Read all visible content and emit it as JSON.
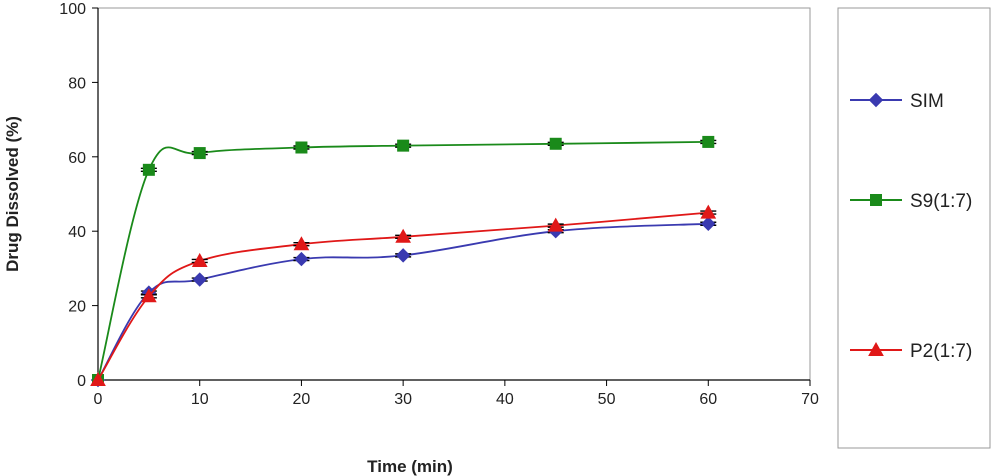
{
  "chart_data": {
    "type": "line",
    "xlabel": "Time (min)",
    "ylabel": "Drug Dissolved (%)",
    "xlim": [
      0,
      70
    ],
    "ylim": [
      0,
      100
    ],
    "xticks": [
      0,
      10,
      20,
      30,
      40,
      50,
      60,
      70
    ],
    "yticks": [
      0,
      20,
      40,
      60,
      80,
      100
    ],
    "grid": false,
    "legend_position": "right",
    "x": [
      0,
      5,
      10,
      20,
      30,
      45,
      60
    ],
    "series": [
      {
        "name": "SIM",
        "marker": "diamond",
        "color": "#3a3ab0",
        "values": [
          0,
          23.5,
          27,
          32.5,
          33.5,
          40,
          42
        ]
      },
      {
        "name": "S9(1:7)",
        "marker": "square",
        "color": "#1a8a1a",
        "values": [
          0,
          56.5,
          61,
          62.5,
          63,
          63.5,
          64
        ]
      },
      {
        "name": "P2(1:7)",
        "marker": "triangle",
        "color": "#e01818",
        "values": [
          0,
          22.5,
          32,
          36.5,
          38.5,
          41.5,
          45
        ]
      }
    ]
  }
}
